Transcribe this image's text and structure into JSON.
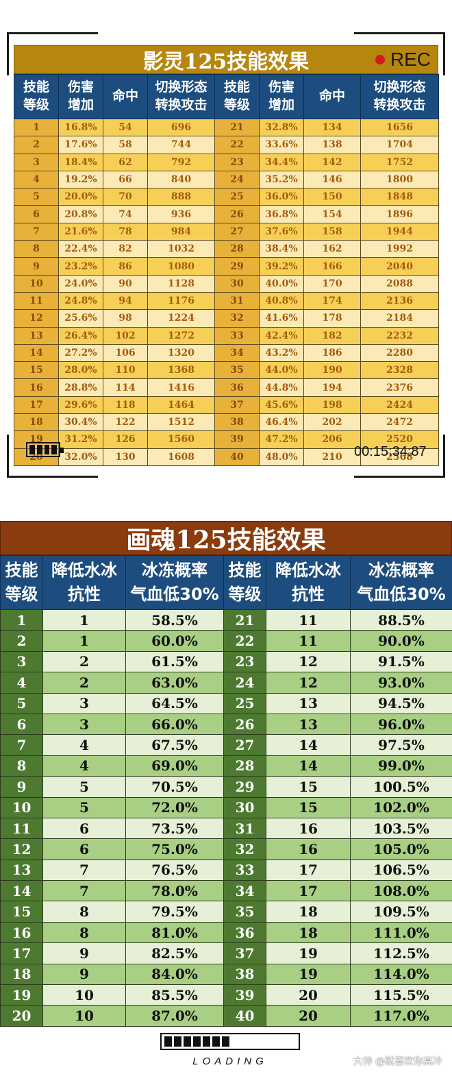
{
  "table1": {
    "title": "影灵125技能效果",
    "rec_label": "REC",
    "timecode": "00:15:34:87",
    "headers": [
      "技能\n等级",
      "伤害\n增加",
      "命中",
      "切换形态\n转换攻击",
      "技能\n等级",
      "伤害\n增加",
      "命中",
      "切换形态\n转换攻击"
    ],
    "rows": [
      [
        "1",
        "16.8%",
        "54",
        "696",
        "21",
        "32.8%",
        "134",
        "1656"
      ],
      [
        "2",
        "17.6%",
        "58",
        "744",
        "22",
        "33.6%",
        "138",
        "1704"
      ],
      [
        "3",
        "18.4%",
        "62",
        "792",
        "23",
        "34.4%",
        "142",
        "1752"
      ],
      [
        "4",
        "19.2%",
        "66",
        "840",
        "24",
        "35.2%",
        "146",
        "1800"
      ],
      [
        "5",
        "20.0%",
        "70",
        "888",
        "25",
        "36.0%",
        "150",
        "1848"
      ],
      [
        "6",
        "20.8%",
        "74",
        "936",
        "26",
        "36.8%",
        "154",
        "1896"
      ],
      [
        "7",
        "21.6%",
        "78",
        "984",
        "27",
        "37.6%",
        "158",
        "1944"
      ],
      [
        "8",
        "22.4%",
        "82",
        "1032",
        "28",
        "38.4%",
        "162",
        "1992"
      ],
      [
        "9",
        "23.2%",
        "86",
        "1080",
        "29",
        "39.2%",
        "166",
        "2040"
      ],
      [
        "10",
        "24.0%",
        "90",
        "1128",
        "30",
        "40.0%",
        "170",
        "2088"
      ],
      [
        "11",
        "24.8%",
        "94",
        "1176",
        "31",
        "40.8%",
        "174",
        "2136"
      ],
      [
        "12",
        "25.6%",
        "98",
        "1224",
        "32",
        "41.6%",
        "178",
        "2184"
      ],
      [
        "13",
        "26.4%",
        "102",
        "1272",
        "33",
        "42.4%",
        "182",
        "2232"
      ],
      [
        "14",
        "27.2%",
        "106",
        "1320",
        "34",
        "43.2%",
        "186",
        "2280"
      ],
      [
        "15",
        "28.0%",
        "110",
        "1368",
        "35",
        "44.0%",
        "190",
        "2328"
      ],
      [
        "16",
        "28.8%",
        "114",
        "1416",
        "36",
        "44.8%",
        "194",
        "2376"
      ],
      [
        "17",
        "29.6%",
        "118",
        "1464",
        "37",
        "45.6%",
        "198",
        "2424"
      ],
      [
        "18",
        "30.4%",
        "122",
        "1512",
        "38",
        "46.4%",
        "202",
        "2472"
      ],
      [
        "19",
        "31.2%",
        "126",
        "1560",
        "39",
        "47.2%",
        "206",
        "2520"
      ],
      [
        "20",
        "32.0%",
        "130",
        "1608",
        "40",
        "48.0%",
        "210",
        "2568"
      ]
    ]
  },
  "table2": {
    "title": "画魂125技能效果",
    "headers": [
      "技能\n等级",
      "降低水冰\n抗性",
      "冰冻概率\n气血低30%",
      "技能\n等级",
      "降低水冰\n抗性",
      "冰冻概率\n气血低30%"
    ],
    "rows": [
      [
        "1",
        "1",
        "58.5%",
        "21",
        "11",
        "88.5%"
      ],
      [
        "2",
        "1",
        "60.0%",
        "22",
        "11",
        "90.0%"
      ],
      [
        "3",
        "2",
        "61.5%",
        "23",
        "12",
        "91.5%"
      ],
      [
        "4",
        "2",
        "63.0%",
        "24",
        "12",
        "93.0%"
      ],
      [
        "5",
        "3",
        "64.5%",
        "25",
        "13",
        "94.5%"
      ],
      [
        "6",
        "3",
        "66.0%",
        "26",
        "13",
        "96.0%"
      ],
      [
        "7",
        "4",
        "67.5%",
        "27",
        "14",
        "97.5%"
      ],
      [
        "8",
        "4",
        "69.0%",
        "28",
        "14",
        "99.0%"
      ],
      [
        "9",
        "5",
        "70.5%",
        "29",
        "15",
        "100.5%"
      ],
      [
        "10",
        "5",
        "72.0%",
        "30",
        "15",
        "102.0%"
      ],
      [
        "11",
        "6",
        "73.5%",
        "31",
        "16",
        "103.5%"
      ],
      [
        "12",
        "6",
        "75.0%",
        "32",
        "16",
        "105.0%"
      ],
      [
        "13",
        "7",
        "76.5%",
        "33",
        "17",
        "106.5%"
      ],
      [
        "14",
        "7",
        "78.0%",
        "34",
        "17",
        "108.0%"
      ],
      [
        "15",
        "8",
        "79.5%",
        "35",
        "18",
        "109.5%"
      ],
      [
        "16",
        "8",
        "81.0%",
        "36",
        "18",
        "111.0%"
      ],
      [
        "17",
        "9",
        "82.5%",
        "37",
        "19",
        "112.5%"
      ],
      [
        "18",
        "9",
        "84.0%",
        "38",
        "19",
        "114.0%"
      ],
      [
        "19",
        "10",
        "85.5%",
        "39",
        "20",
        "115.5%"
      ],
      [
        "20",
        "10",
        "87.0%",
        "40",
        "20",
        "117.0%"
      ]
    ]
  },
  "loading": {
    "label": "LOADING",
    "progress": 0.55
  },
  "watermark": "大神 @就喜欢你高冷",
  "colors": {
    "header_blue": "#1c4d7e",
    "gold": "#b6860f",
    "brown": "#8a3c0f",
    "green": "#4d7a30",
    "rec_red": "#d11a1a"
  },
  "icons": {
    "rec": "rec-dot-icon",
    "battery": "battery-icon"
  }
}
